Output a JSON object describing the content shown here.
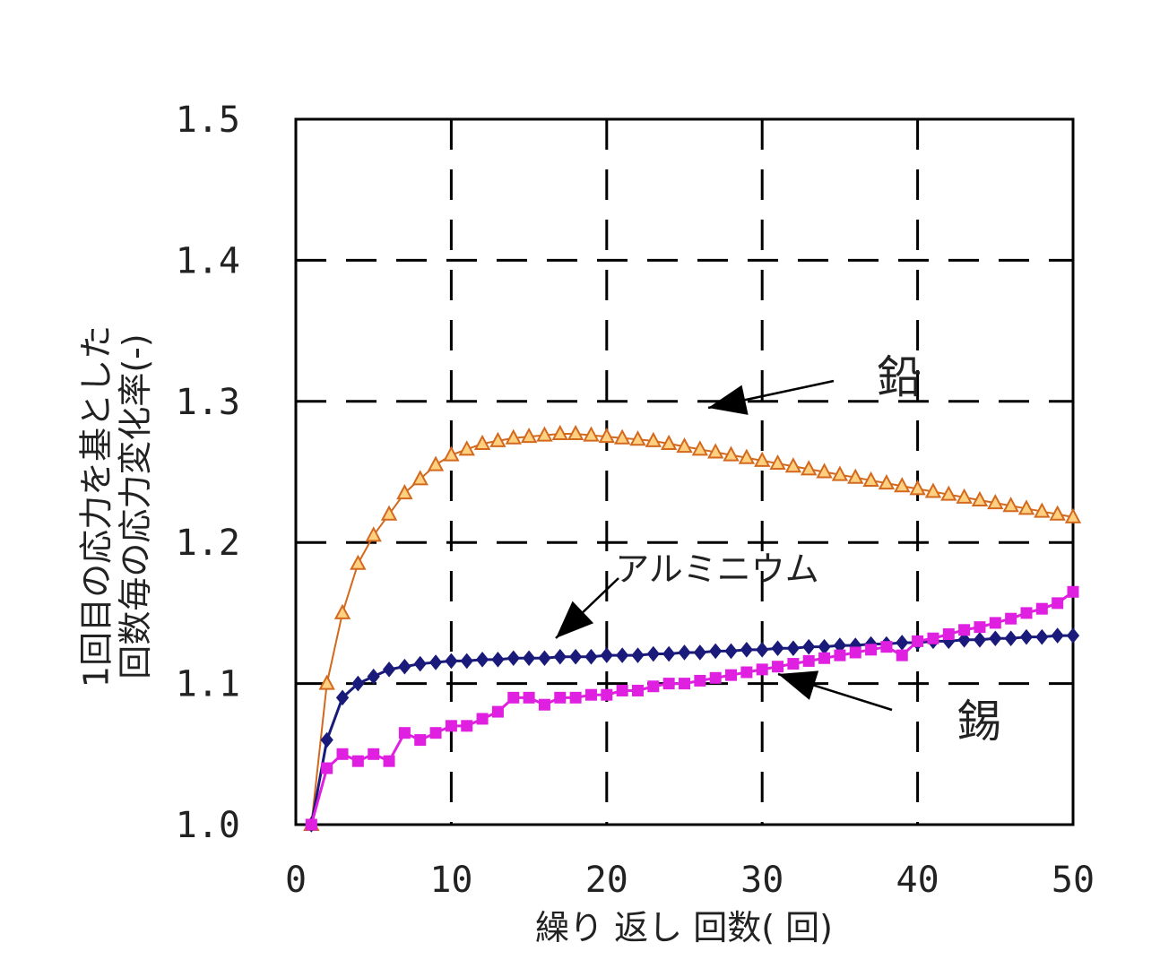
{
  "chart_data": {
    "type": "line",
    "xlabel": "繰り 返し 回数( 回)",
    "ylabel": "1回目の応力を基とした回数毎の応力変化率(-)",
    "xlim": [
      0,
      50
    ],
    "ylim": [
      1.0,
      1.5
    ],
    "x_ticks": [
      "0",
      "10",
      "20",
      "30",
      "40",
      "50"
    ],
    "y_ticks": [
      "1.0",
      "1.1",
      "1.2",
      "1.3",
      "1.4",
      "1.5"
    ],
    "grid": true,
    "legend": "none",
    "series": [
      {
        "name": "鉛",
        "color": "#d2691e",
        "marker": "triangle",
        "x": [
          1,
          2,
          3,
          4,
          5,
          6,
          7,
          8,
          9,
          10,
          11,
          12,
          13,
          14,
          15,
          16,
          17,
          18,
          19,
          20,
          21,
          22,
          23,
          24,
          25,
          26,
          27,
          28,
          29,
          30,
          31,
          32,
          33,
          34,
          35,
          36,
          37,
          38,
          39,
          40,
          41,
          42,
          43,
          44,
          45,
          46,
          47,
          48,
          49,
          50
        ],
        "values": [
          1.0,
          1.1,
          1.15,
          1.185,
          1.205,
          1.22,
          1.235,
          1.245,
          1.255,
          1.262,
          1.266,
          1.27,
          1.272,
          1.274,
          1.275,
          1.276,
          1.277,
          1.277,
          1.276,
          1.275,
          1.274,
          1.273,
          1.272,
          1.27,
          1.268,
          1.266,
          1.264,
          1.262,
          1.26,
          1.258,
          1.256,
          1.254,
          1.252,
          1.25,
          1.248,
          1.246,
          1.244,
          1.242,
          1.24,
          1.238,
          1.236,
          1.234,
          1.232,
          1.23,
          1.228,
          1.226,
          1.224,
          1.222,
          1.22,
          1.218
        ]
      },
      {
        "name": "アルミニウム",
        "color": "#1a1a7a",
        "marker": "diamond",
        "x": [
          1,
          2,
          3,
          4,
          5,
          6,
          7,
          8,
          9,
          10,
          11,
          12,
          13,
          14,
          15,
          16,
          17,
          18,
          19,
          20,
          21,
          22,
          23,
          24,
          25,
          26,
          27,
          28,
          29,
          30,
          31,
          32,
          33,
          34,
          35,
          36,
          37,
          38,
          39,
          40,
          41,
          42,
          43,
          44,
          45,
          46,
          47,
          48,
          49,
          50
        ],
        "values": [
          1.0,
          1.06,
          1.09,
          1.1,
          1.105,
          1.11,
          1.112,
          1.114,
          1.115,
          1.116,
          1.116,
          1.117,
          1.117,
          1.118,
          1.118,
          1.118,
          1.119,
          1.119,
          1.119,
          1.12,
          1.12,
          1.12,
          1.121,
          1.121,
          1.122,
          1.122,
          1.123,
          1.123,
          1.124,
          1.124,
          1.125,
          1.125,
          1.126,
          1.126,
          1.127,
          1.127,
          1.128,
          1.128,
          1.129,
          1.129,
          1.13,
          1.13,
          1.131,
          1.131,
          1.132,
          1.132,
          1.133,
          1.133,
          1.134,
          1.134
        ]
      },
      {
        "name": "錫",
        "color": "#e020e0",
        "marker": "square",
        "x": [
          1,
          2,
          3,
          4,
          5,
          6,
          7,
          8,
          9,
          10,
          11,
          12,
          13,
          14,
          15,
          16,
          17,
          18,
          19,
          20,
          21,
          22,
          23,
          24,
          25,
          26,
          27,
          28,
          29,
          30,
          31,
          32,
          33,
          34,
          35,
          36,
          37,
          38,
          39,
          40,
          41,
          42,
          43,
          44,
          45,
          46,
          47,
          48,
          49,
          50
        ],
        "values": [
          1.0,
          1.04,
          1.05,
          1.045,
          1.05,
          1.045,
          1.065,
          1.06,
          1.065,
          1.07,
          1.07,
          1.075,
          1.08,
          1.09,
          1.09,
          1.085,
          1.09,
          1.09,
          1.092,
          1.092,
          1.095,
          1.095,
          1.098,
          1.1,
          1.1,
          1.102,
          1.104,
          1.106,
          1.108,
          1.11,
          1.112,
          1.114,
          1.116,
          1.118,
          1.12,
          1.122,
          1.124,
          1.126,
          1.12,
          1.13,
          1.132,
          1.135,
          1.138,
          1.14,
          1.143,
          1.146,
          1.15,
          1.153,
          1.157,
          1.165
        ]
      }
    ],
    "annotations": [
      {
        "text": "鉛",
        "series": "鉛"
      },
      {
        "text": "アルミニウム",
        "series": "アルミニウム"
      },
      {
        "text": "錫",
        "series": "錫"
      }
    ]
  }
}
